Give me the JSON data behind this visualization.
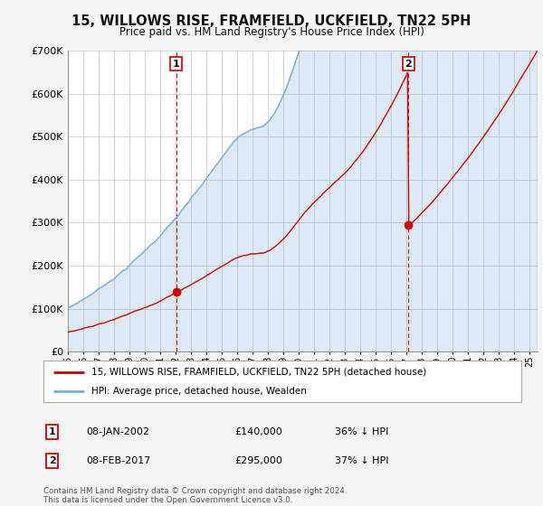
{
  "title": "15, WILLOWS RISE, FRAMFIELD, UCKFIELD, TN22 5PH",
  "subtitle": "Price paid vs. HM Land Registry's House Price Index (HPI)",
  "legend_line1": "15, WILLOWS RISE, FRAMFIELD, UCKFIELD, TN22 5PH (detached house)",
  "legend_line2": "HPI: Average price, detached house, Wealden",
  "annotation1_date": "08-JAN-2002",
  "annotation1_price": "£140,000",
  "annotation1_hpi": "36% ↓ HPI",
  "annotation2_date": "08-FEB-2017",
  "annotation2_price": "£295,000",
  "annotation2_hpi": "37% ↓ HPI",
  "footer": "Contains HM Land Registry data © Crown copyright and database right 2024.\nThis data is licensed under the Open Government Licence v3.0.",
  "sale1_year": 2002.04,
  "sale1_value": 140000,
  "sale2_year": 2017.12,
  "sale2_value": 295000,
  "ylim_min": 0,
  "ylim_max": 700000,
  "xlim_min": 1995,
  "xlim_max": 2025.5,
  "price_line_color": "#cc0000",
  "hpi_line_color": "#7aafd4",
  "hpi_fill_color": "#ddeeff",
  "background_color": "#f5f5f5",
  "plot_bg_color": "#ffffff",
  "grid_color": "#cccccc"
}
